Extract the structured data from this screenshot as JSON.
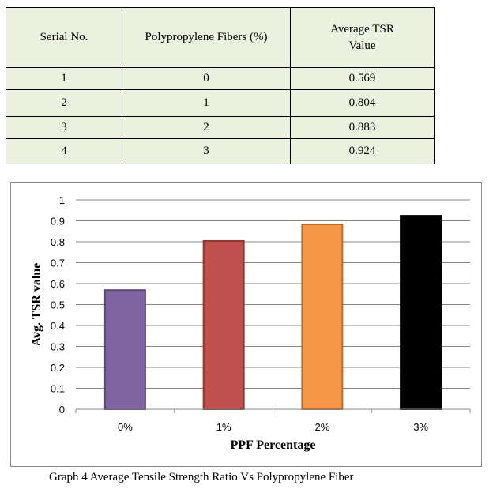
{
  "table": {
    "headers": [
      "Serial No.",
      "Polypropylene Fibers (%)",
      "Average TSR Value"
    ],
    "rows": [
      [
        "1",
        "0",
        "0.569"
      ],
      [
        "2",
        "1",
        "0.804"
      ],
      [
        "3",
        "2",
        "0.883"
      ],
      [
        "4",
        "3",
        "0.924"
      ]
    ]
  },
  "chart_data": {
    "type": "bar",
    "categories": [
      "0%",
      "1%",
      "2%",
      "3%"
    ],
    "values": [
      0.569,
      0.804,
      0.883,
      0.924
    ],
    "bar_colors": [
      "#8064a2",
      "#c0504d",
      "#f79646",
      "#000000"
    ],
    "bar_edge_colors": [
      "#5c4776",
      "#8c3836",
      "#b66d31",
      "#000000"
    ],
    "xlabel": "PPF Percentage",
    "ylabel": "Avg. TSR value",
    "ylim": [
      0,
      1
    ],
    "yticks": [
      "0",
      "0.1",
      "0.2",
      "0.3",
      "0.4",
      "0.5",
      "0.6",
      "0.7",
      "0.8",
      "0.9",
      "1"
    ],
    "grid": true,
    "legend": "none"
  },
  "caption": "Graph 4 Average Tensile Strength Ratio Vs Polypropylene Fiber"
}
